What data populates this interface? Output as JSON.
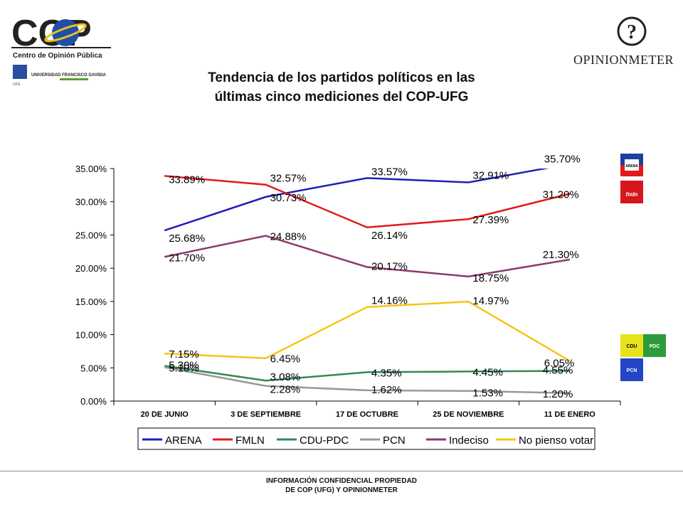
{
  "header": {
    "cop_logo_text": "COP",
    "cop_subtitle": "Centro de Opinión Pública",
    "university": "UNIVERSIDAD FRANCISCO GAVIDIA",
    "ufg_short": "UFG",
    "opinionmeter_brand": "OPINIONMETER"
  },
  "footer": {
    "line1": "INFORMACIÓN CONFIDENCIAL PROPIEDAD",
    "line2": "DE COP (UFG) Y OPINIONMETER"
  },
  "party_logos": {
    "arena": "ARENA",
    "fmln": "fmln",
    "cdu": "CDU",
    "pdc": "PDC",
    "pcn": "PCN"
  },
  "chart_data": {
    "type": "line",
    "title": "Tendencia de los partidos políticos en las últimas cinco mediciones del COP-UFG",
    "title_lines": [
      "Tendencia de los partidos políticos en las",
      "últimas cinco mediciones del COP-UFG"
    ],
    "categories": [
      "20 DE JUNIO",
      "3 DE SEPTIEMBRE",
      "17 DE OCTUBRE",
      "25 DE NOVIEMBRE",
      "11 DE ENERO"
    ],
    "ylim": [
      0,
      35
    ],
    "yticks": [
      "0.00%",
      "5.00%",
      "10.00%",
      "15.00%",
      "20.00%",
      "25.00%",
      "30.00%",
      "35.00%"
    ],
    "grid": false,
    "legend": "bottom",
    "series": [
      {
        "name": "ARENA",
        "color": "#1f1fb4",
        "values": [
          25.68,
          30.73,
          33.57,
          32.91,
          35.7
        ],
        "labels": [
          "25.68%",
          "30.73%",
          "33.57%",
          "32.91%",
          "35.70%"
        ]
      },
      {
        "name": "FMLN",
        "color": "#e31a1c",
        "values": [
          33.89,
          32.57,
          26.14,
          27.39,
          31.2
        ],
        "labels": [
          "33.89%",
          "32.57%",
          "26.14%",
          "27.39%",
          "31.20%"
        ]
      },
      {
        "name": "CDU-PDC",
        "color": "#2e8b57",
        "values": [
          5.3,
          3.08,
          4.35,
          4.45,
          4.55
        ],
        "labels": [
          "5.30%",
          "3.08%",
          "4.35%",
          "4.45%",
          "4.55%"
        ]
      },
      {
        "name": "PCN",
        "color": "#999999",
        "values": [
          5.1,
          2.28,
          1.62,
          1.53,
          1.2
        ],
        "labels": [
          "5.10%",
          "2.28%",
          "1.62%",
          "1.53%",
          "1.20%"
        ]
      },
      {
        "name": "Indeciso",
        "color": "#8b3a6b",
        "values": [
          21.7,
          24.88,
          20.17,
          18.75,
          21.3
        ],
        "labels": [
          "21.70%",
          "24.88%",
          "20.17%",
          "18.75%",
          "21.30%"
        ]
      },
      {
        "name": "No pienso votar",
        "color": "#f5c518",
        "values": [
          7.15,
          6.45,
          14.16,
          14.97,
          6.05
        ],
        "labels": [
          "7.15%",
          "6.45%",
          "14.16%",
          "14.97%",
          "6.05%"
        ]
      }
    ]
  }
}
